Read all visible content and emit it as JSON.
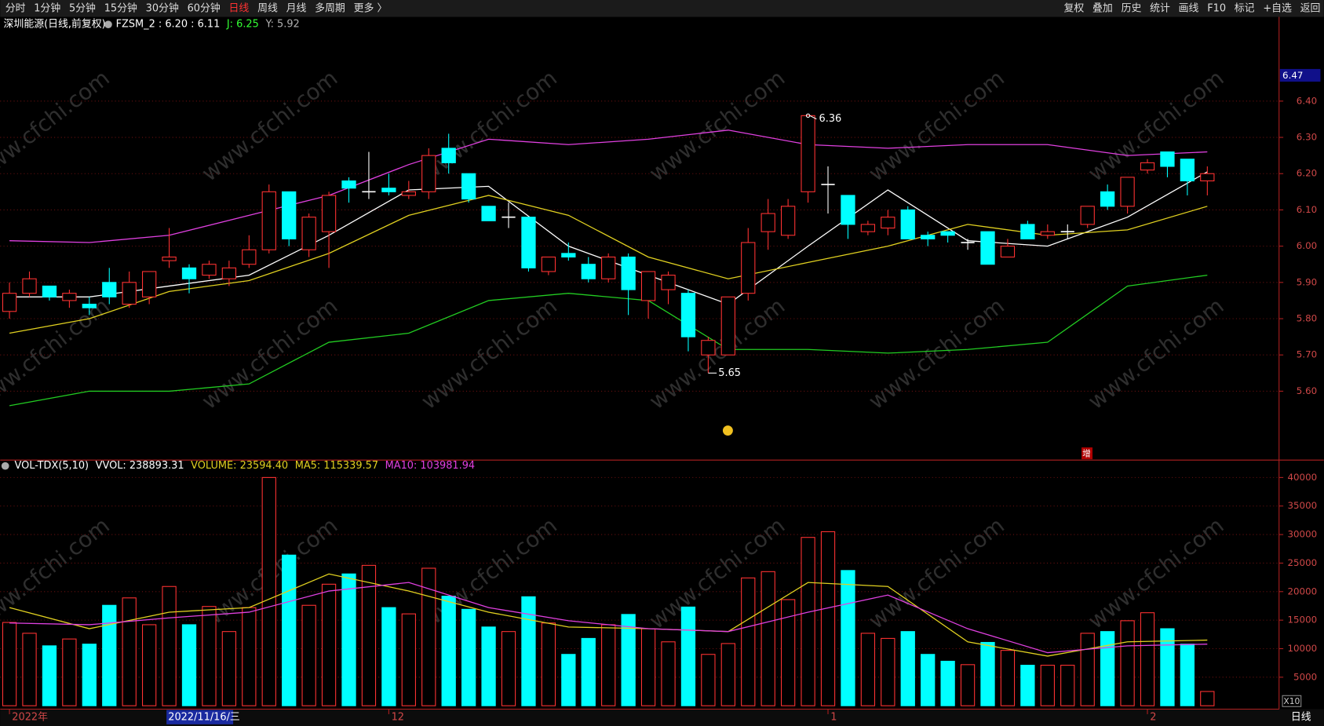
{
  "toolbar": {
    "periods": [
      "分时",
      "1分钟",
      "5分钟",
      "15分钟",
      "30分钟",
      "60分钟",
      "日线",
      "周线",
      "月线",
      "多周期",
      "更多 〉"
    ],
    "active_period": 6,
    "tools": [
      "复权",
      "叠加",
      "历史",
      "统计",
      "画线",
      "F10",
      "标记",
      "+自选",
      "返回"
    ]
  },
  "watermark": "www.cfchi.com",
  "cursor_date": "2022/11/16/三",
  "period_label": "日线",
  "zoom_label": "X10",
  "marker_text": "增",
  "chart_data": [
    {
      "type": "candlestick",
      "title": "深圳能源(日线,前复权)",
      "legend": [
        {
          "text": "FZSM_2 : 6.20 : 6.11",
          "color": "#ffffff"
        },
        {
          "text": "J: 6.25",
          "color": "#33ff33"
        },
        {
          "text": "Y: 5.92",
          "color": "#b0b0b0"
        }
      ],
      "up_color": "#ff3232",
      "down_color": "#00ffff",
      "flat_color": "#ffffff",
      "open": [
        5.82,
        5.87,
        5.89,
        5.85,
        5.84,
        5.9,
        5.84,
        5.86,
        5.96,
        5.94,
        5.92,
        5.91,
        5.95,
        5.99,
        6.15,
        5.99,
        6.04,
        6.18,
        6.15,
        6.16,
        6.14,
        6.15,
        6.27,
        6.2,
        6.11,
        6.08,
        6.08,
        5.93,
        5.98,
        5.95,
        5.91,
        5.97,
        5.85,
        5.88,
        5.87,
        5.7,
        5.7,
        5.87,
        6.04,
        6.03,
        6.15,
        6.17,
        6.14,
        6.04,
        6.05,
        6.1,
        6.03,
        6.04,
        6.01,
        6.04,
        5.97,
        6.06,
        6.03,
        6.04,
        6.06,
        6.15,
        6.11,
        6.21,
        6.26,
        6.24,
        6.18
      ],
      "high": [
        5.9,
        5.93,
        5.89,
        5.88,
        5.86,
        5.94,
        5.93,
        5.93,
        6.05,
        5.95,
        5.96,
        5.96,
        6.03,
        6.17,
        6.15,
        6.09,
        6.15,
        6.19,
        6.26,
        6.2,
        6.18,
        6.27,
        6.31,
        6.2,
        6.11,
        6.12,
        6.08,
        5.97,
        6.01,
        5.97,
        5.98,
        5.98,
        5.93,
        5.93,
        5.88,
        5.75,
        5.86,
        6.05,
        6.13,
        6.13,
        6.36,
        6.22,
        6.14,
        6.07,
        6.1,
        6.11,
        6.04,
        6.04,
        6.02,
        6.04,
        6.02,
        6.07,
        6.06,
        6.06,
        6.11,
        6.17,
        6.19,
        6.24,
        6.26,
        6.24,
        6.22
      ],
      "low": [
        5.8,
        5.86,
        5.85,
        5.83,
        5.81,
        5.84,
        5.83,
        5.84,
        5.94,
        5.87,
        5.91,
        5.89,
        5.94,
        5.98,
        6.0,
        5.97,
        5.94,
        6.12,
        6.13,
        6.14,
        6.13,
        6.13,
        6.2,
        6.12,
        6.07,
        6.05,
        5.93,
        5.92,
        5.96,
        5.9,
        5.9,
        5.81,
        5.8,
        5.84,
        5.71,
        5.65,
        5.7,
        5.85,
        5.99,
        6.02,
        6.12,
        6.09,
        6.02,
        6.03,
        6.03,
        6.02,
        6.0,
        6.01,
        5.99,
        5.95,
        5.97,
        6.02,
        6.02,
        6.02,
        6.05,
        6.1,
        6.09,
        6.2,
        6.19,
        6.14,
        6.14
      ],
      "close": [
        5.87,
        5.91,
        5.86,
        5.87,
        5.83,
        5.86,
        5.9,
        5.93,
        5.97,
        5.91,
        5.95,
        5.94,
        5.99,
        6.15,
        6.02,
        6.08,
        6.14,
        6.16,
        6.15,
        6.15,
        6.15,
        6.25,
        6.23,
        6.13,
        6.07,
        6.08,
        5.94,
        5.97,
        5.97,
        5.91,
        5.97,
        5.88,
        5.93,
        5.92,
        5.75,
        5.74,
        5.86,
        6.01,
        6.09,
        6.11,
        6.36,
        6.17,
        6.06,
        6.06,
        6.08,
        6.02,
        6.02,
        6.03,
        6.01,
        5.95,
        6.0,
        6.02,
        6.04,
        6.04,
        6.11,
        6.11,
        6.19,
        6.23,
        6.22,
        6.18,
        6.2
      ],
      "high_label": "6.36",
      "low_label": "5.65",
      "line_x": [
        0,
        4,
        8,
        12,
        16,
        20,
        24,
        28,
        32,
        36,
        40,
        44,
        48,
        52,
        56,
        60
      ],
      "lines": [
        {
          "color": "#e040e0",
          "values": [
            6.015,
            6.01,
            6.03,
            6.085,
            6.14,
            6.225,
            6.295,
            6.28,
            6.295,
            6.32,
            6.28,
            6.27,
            6.28,
            6.28,
            6.25,
            6.26
          ]
        },
        {
          "color": "#ffffff",
          "values": [
            5.86,
            5.86,
            5.89,
            5.92,
            6.03,
            6.155,
            6.165,
            6.0,
            5.92,
            5.84,
            6.0,
            6.155,
            6.015,
            6.0,
            6.08,
            6.205
          ]
        },
        {
          "color": "#22cc22",
          "values": [
            5.56,
            5.6,
            5.6,
            5.62,
            5.735,
            5.76,
            5.85,
            5.87,
            5.85,
            5.715,
            5.715,
            5.705,
            5.715,
            5.735,
            5.89,
            5.92
          ]
        },
        {
          "color": "#e0d020",
          "values": [
            5.76,
            5.8,
            5.875,
            5.905,
            5.98,
            6.085,
            6.14,
            6.085,
            5.97,
            5.91,
            5.955,
            6.0,
            6.06,
            6.03,
            6.045,
            6.11
          ]
        }
      ],
      "cursor_price": 6.47,
      "ylim": [
        5.41,
        6.63
      ],
      "yticks": [
        {
          "value": 5.6,
          "label": "5.60"
        },
        {
          "value": 5.7,
          "label": "5.70"
        },
        {
          "value": 5.8,
          "label": "5.80"
        },
        {
          "value": 5.9,
          "label": "5.90"
        },
        {
          "value": 6.0,
          "label": "6.00"
        },
        {
          "value": 6.1,
          "label": "6.10"
        },
        {
          "value": 6.2,
          "label": "6.20"
        },
        {
          "value": 6.3,
          "label": "6.30"
        },
        {
          "value": 6.4,
          "label": "6.40"
        }
      ],
      "grid": true
    },
    {
      "type": "bar",
      "legend": [
        {
          "text": "VOL-TDX(5,10)",
          "color": "#ffffff"
        },
        {
          "text": "VVOL: 238893.31",
          "color": "#ffffff"
        },
        {
          "text": "VOLUME: 23594.40",
          "color": "#e0d020"
        },
        {
          "text": "MA5: 115339.57",
          "color": "#e0d020"
        },
        {
          "text": "MA10: 103981.94",
          "color": "#e040e0"
        }
      ],
      "categories": [
        "2022年",
        null,
        null,
        null,
        null,
        null,
        null,
        null,
        null,
        null,
        null,
        null,
        null,
        null,
        null,
        null,
        null,
        null,
        null,
        "12",
        null,
        null,
        null,
        null,
        null,
        null,
        null,
        null,
        null,
        null,
        null,
        null,
        null,
        null,
        null,
        null,
        null,
        null,
        null,
        null,
        null,
        "1",
        null,
        null,
        null,
        null,
        null,
        null,
        null,
        null,
        null,
        null,
        null,
        null,
        null,
        null,
        null,
        "2",
        null,
        null,
        null
      ],
      "values": [
        14600,
        12700,
        10500,
        11700,
        10800,
        17600,
        18900,
        14200,
        20900,
        14200,
        17400,
        13000,
        17200,
        40000,
        26400,
        17600,
        21300,
        23100,
        24600,
        17200,
        16100,
        24100,
        19200,
        16900,
        13800,
        13000,
        19100,
        14500,
        9000,
        11800,
        14200,
        16000,
        13500,
        11200,
        17300,
        9000,
        10900,
        22400,
        23500,
        18600,
        29500,
        30500,
        23700,
        12700,
        11800,
        13000,
        9000,
        7800,
        7200,
        11100,
        9700,
        7100,
        7100,
        7100,
        12700,
        13000,
        14900,
        16300,
        13500,
        10800,
        2500
      ],
      "line_x": [
        0,
        4,
        8,
        12,
        16,
        20,
        24,
        28,
        32,
        36,
        40,
        44,
        48,
        52,
        56,
        60
      ],
      "lines": [
        {
          "color": "#e0d020",
          "values": [
            17200,
            13500,
            16400,
            17200,
            23100,
            20100,
            16400,
            13800,
            13500,
            13000,
            21600,
            20900,
            11200,
            8700,
            11200,
            11500
          ]
        },
        {
          "color": "#e040e0",
          "values": [
            14500,
            14200,
            15400,
            16400,
            20100,
            21600,
            17200,
            14900,
            13500,
            13000,
            16400,
            19400,
            13500,
            9300,
            10500,
            10800
          ]
        }
      ],
      "ylim": [
        0,
        43200
      ],
      "yticks": [
        5000,
        10000,
        15000,
        20000,
        25000,
        30000,
        35000,
        40000
      ],
      "grid": true
    }
  ]
}
